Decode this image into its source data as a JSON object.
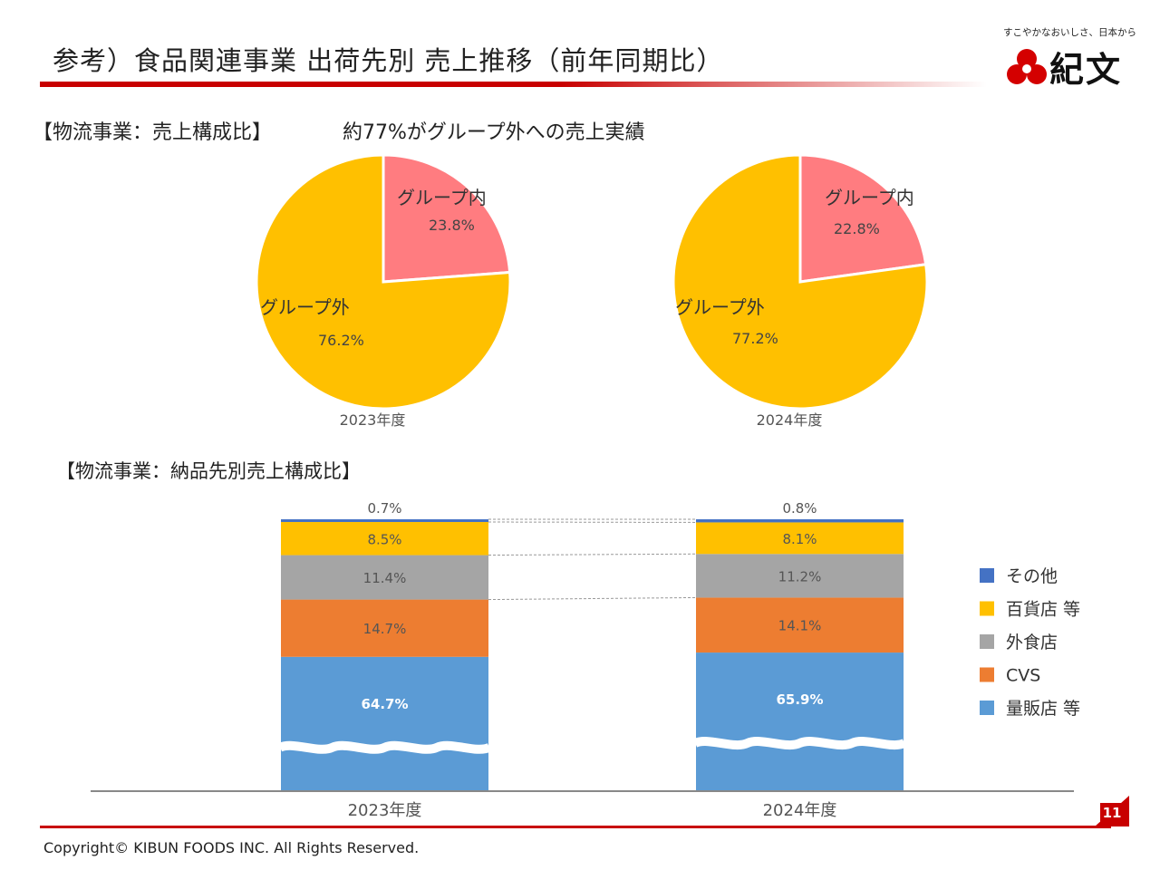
{
  "header": {
    "title": "参考）食品関連事業 出荷先別 売上推移（前年同期比）"
  },
  "logo": {
    "tagline": "すこやかなおいしさ、日本から",
    "name": "紀文"
  },
  "colors": {
    "brand_red": "#c80000",
    "group_in": "#ff7c80",
    "group_out": "#ffc000",
    "other": "#4472c4",
    "department": "#ffc000",
    "restaurant": "#a5a5a5",
    "cvs": "#ed7d31",
    "mass_retail": "#5b9bd5"
  },
  "section1": {
    "title": "【物流事業：売上構成比】",
    "headline": "約77%がグループ外への売上実績"
  },
  "section2": {
    "title": "【物流事業：納品先別売上構成比】"
  },
  "chart_data": [
    {
      "type": "pie",
      "title": "2023年度",
      "slices": [
        {
          "label": "グループ内",
          "value": 23.8,
          "display": "23.8%"
        },
        {
          "label": "グループ外",
          "value": 76.2,
          "display": "76.2%"
        }
      ]
    },
    {
      "type": "pie",
      "title": "2024年度",
      "slices": [
        {
          "label": "グループ内",
          "value": 22.8,
          "display": "22.8%"
        },
        {
          "label": "グループ外",
          "value": 77.2,
          "display": "77.2%"
        }
      ]
    },
    {
      "type": "bar",
      "stacked": true,
      "categories": [
        "2023年度",
        "2024年度"
      ],
      "legend_position": "right",
      "axis_break": true,
      "series": [
        {
          "name": "量販店 等",
          "values": [
            64.7,
            65.9
          ],
          "labels": [
            "64.7%",
            "65.9%"
          ]
        },
        {
          "name": "CVS",
          "values": [
            14.7,
            14.1
          ],
          "labels": [
            "14.7%",
            "14.1%"
          ]
        },
        {
          "name": "外食店",
          "values": [
            11.4,
            11.2
          ],
          "labels": [
            "11.4%",
            "11.2%"
          ]
        },
        {
          "name": "百貨店 等",
          "values": [
            8.5,
            8.1
          ],
          "labels": [
            "8.5%",
            "8.1%"
          ]
        },
        {
          "name": "その他",
          "values": [
            0.7,
            0.8
          ],
          "labels": [
            "0.7%",
            "0.8%"
          ]
        }
      ]
    }
  ],
  "legend": [
    {
      "name": "その他"
    },
    {
      "name": "百貨店 等"
    },
    {
      "name": "外食店"
    },
    {
      "name": "CVS"
    },
    {
      "name": "量販店 等"
    }
  ],
  "footer": {
    "copyright": "Copyright©  KIBUN FOODS INC. All Rights Reserved.",
    "page": "11"
  }
}
